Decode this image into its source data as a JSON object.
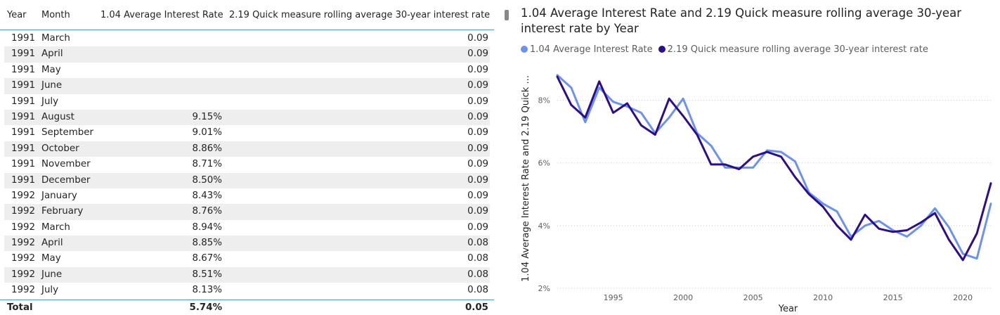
{
  "table": {
    "headers": {
      "year": "Year",
      "month": "Month",
      "avg": "1.04 Average Interest Rate",
      "rolling": "2.19 Quick measure rolling average 30-year interest rate"
    },
    "rows": [
      {
        "year": "1991",
        "month": "March",
        "avg": "",
        "rolling": "0.09"
      },
      {
        "year": "1991",
        "month": "April",
        "avg": "",
        "rolling": "0.09"
      },
      {
        "year": "1991",
        "month": "May",
        "avg": "",
        "rolling": "0.09"
      },
      {
        "year": "1991",
        "month": "June",
        "avg": "",
        "rolling": "0.09"
      },
      {
        "year": "1991",
        "month": "July",
        "avg": "",
        "rolling": "0.09"
      },
      {
        "year": "1991",
        "month": "August",
        "avg": "9.15%",
        "rolling": "0.09"
      },
      {
        "year": "1991",
        "month": "September",
        "avg": "9.01%",
        "rolling": "0.09"
      },
      {
        "year": "1991",
        "month": "October",
        "avg": "8.86%",
        "rolling": "0.09"
      },
      {
        "year": "1991",
        "month": "November",
        "avg": "8.71%",
        "rolling": "0.09"
      },
      {
        "year": "1991",
        "month": "December",
        "avg": "8.50%",
        "rolling": "0.09"
      },
      {
        "year": "1992",
        "month": "January",
        "avg": "8.43%",
        "rolling": "0.09"
      },
      {
        "year": "1992",
        "month": "February",
        "avg": "8.76%",
        "rolling": "0.09"
      },
      {
        "year": "1992",
        "month": "March",
        "avg": "8.94%",
        "rolling": "0.09"
      },
      {
        "year": "1992",
        "month": "April",
        "avg": "8.85%",
        "rolling": "0.08"
      },
      {
        "year": "1992",
        "month": "May",
        "avg": "8.67%",
        "rolling": "0.08"
      },
      {
        "year": "1992",
        "month": "June",
        "avg": "8.51%",
        "rolling": "0.08"
      },
      {
        "year": "1992",
        "month": "July",
        "avg": "8.13%",
        "rolling": "0.08"
      }
    ],
    "total": {
      "label": "Total",
      "avg": "5.74%",
      "rolling": "0.05"
    }
  },
  "chart_data": {
    "type": "line",
    "title": "1.04 Average Interest Rate and 2.19 Quick measure rolling average 30-year interest rate by Year",
    "xlabel": "Year",
    "ylabel": "1.04 Average Interest Rate and 2.19 Quick ...",
    "xlim": [
      1991,
      2022
    ],
    "ylim": [
      2,
      9
    ],
    "x_ticks": [
      1995,
      2000,
      2005,
      2010,
      2015,
      2020
    ],
    "y_ticks": [
      2,
      4,
      6,
      8
    ],
    "y_tick_labels": [
      "2%",
      "4%",
      "6%",
      "8%"
    ],
    "grid": true,
    "legend_position": "top-left",
    "x": [
      1991,
      1992,
      1993,
      1994,
      1995,
      1996,
      1997,
      1998,
      1999,
      2000,
      2001,
      2002,
      2003,
      2004,
      2005,
      2006,
      2007,
      2008,
      2009,
      2010,
      2011,
      2012,
      2013,
      2014,
      2015,
      2016,
      2017,
      2018,
      2019,
      2020,
      2021,
      2022
    ],
    "series": [
      {
        "name": "1.04 Average Interest Rate",
        "color": "#6b91f2",
        "values": [
          8.8,
          8.4,
          7.3,
          8.4,
          7.95,
          7.8,
          7.6,
          6.95,
          7.45,
          8.05,
          6.95,
          6.55,
          5.85,
          5.85,
          5.85,
          6.4,
          6.35,
          6.05,
          5.05,
          4.7,
          4.45,
          3.65,
          4.0,
          4.15,
          3.85,
          3.65,
          4.0,
          4.55,
          3.95,
          3.1,
          2.95,
          4.7
        ]
      },
      {
        "name": "2.19 Quick measure rolling average 30-year interest rate",
        "color": "#2c0c8f",
        "values": [
          8.75,
          7.85,
          7.45,
          8.6,
          7.6,
          7.9,
          7.2,
          6.9,
          8.05,
          7.5,
          6.9,
          5.95,
          5.95,
          5.8,
          6.2,
          6.35,
          6.2,
          5.55,
          5.0,
          4.6,
          4.0,
          3.55,
          4.35,
          3.9,
          3.8,
          3.85,
          4.1,
          4.4,
          3.55,
          2.9,
          3.75,
          5.35
        ]
      }
    ]
  }
}
